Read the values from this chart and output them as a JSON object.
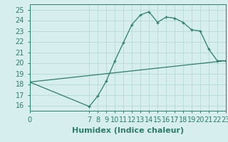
{
  "title": "",
  "xlabel": "Humidex (Indice chaleur)",
  "ylabel": "",
  "background_color": "#d6eeee",
  "line_color": "#2e7d6e",
  "marker": "+",
  "xlim": [
    0,
    23
  ],
  "ylim": [
    15.5,
    25.5
  ],
  "yticks": [
    16,
    17,
    18,
    19,
    20,
    21,
    22,
    23,
    24,
    25
  ],
  "xticks": [
    0,
    7,
    8,
    9,
    10,
    11,
    12,
    13,
    14,
    15,
    16,
    17,
    18,
    19,
    20,
    21,
    22,
    23
  ],
  "series1_x": [
    0,
    7,
    8,
    9,
    10,
    11,
    12,
    13,
    14,
    15,
    16,
    17,
    18,
    19,
    20,
    21,
    22,
    23
  ],
  "series1_y": [
    18.2,
    15.9,
    16.9,
    18.3,
    20.2,
    21.9,
    23.6,
    24.5,
    24.8,
    23.8,
    24.3,
    24.2,
    23.8,
    23.1,
    23.0,
    21.3,
    20.2,
    20.2
  ],
  "series2_x": [
    0,
    23
  ],
  "series2_y": [
    18.2,
    20.2
  ],
  "grid_color": "#b8d8d8",
  "tick_label_fontsize": 7,
  "xlabel_fontsize": 8
}
